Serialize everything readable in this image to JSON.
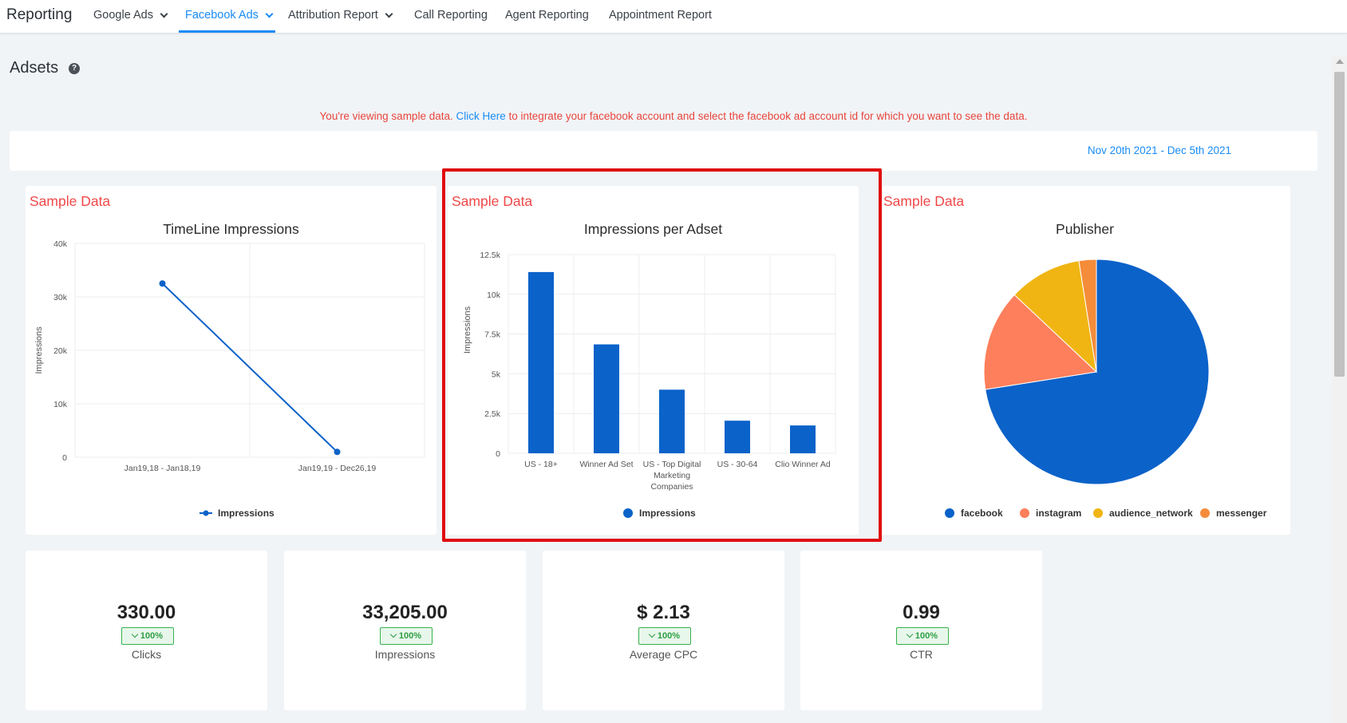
{
  "nav": {
    "brand": "Reporting",
    "items": [
      {
        "label": "Google Ads",
        "dropdown": true
      },
      {
        "label": "Facebook Ads",
        "dropdown": true,
        "active": true
      },
      {
        "label": "Attribution Report",
        "dropdown": true
      },
      {
        "label": "Call Reporting"
      },
      {
        "label": "Agent Reporting"
      },
      {
        "label": "Appointment Report"
      }
    ]
  },
  "page": {
    "title": "Adsets",
    "help_icon": "question-circle-icon"
  },
  "notice": {
    "prefix": "You're viewing sample data.",
    "link": "Click Here",
    "suffix": "to integrate your facebook account and select the facebook ad account id for which you want to see the data."
  },
  "date_range": "Nov 20th 2021 - Dec 5th 2021",
  "sample_label": "Sample Data",
  "colors": {
    "accent": "#188bf6",
    "bar_blue": "#0b62c9",
    "warning_red": "#f04848",
    "highlight_red": "#e00d0d",
    "badge_green": "#37b24d"
  },
  "chart_data": [
    {
      "type": "line",
      "title": "TimeLine Impressions",
      "ylabel": "Impressions",
      "categories": [
        "Jan19,18 - Jan18,19",
        "Jan19,19 - Dec26,19"
      ],
      "y_ticks": [
        "40k",
        "30k",
        "20k",
        "10k",
        "0"
      ],
      "ylim": [
        0,
        40000
      ],
      "series": [
        {
          "name": "Impressions",
          "values": [
            32500,
            1000
          ],
          "color": "#0b62c9"
        }
      ]
    },
    {
      "type": "bar",
      "title": "Impressions per Adset",
      "ylabel": "Impressions",
      "categories": [
        "US - 18+",
        "Winner Ad Set",
        "US - Top Digital Marketing Companies",
        "US - 30-64",
        "Clio Winner Ad"
      ],
      "category_lines": [
        [
          "US - 18+"
        ],
        [
          "Winner Ad Set"
        ],
        [
          "US - Top Digital",
          "Marketing",
          "Companies"
        ],
        [
          "US - 30-64"
        ],
        [
          "Clio Winner Ad"
        ]
      ],
      "y_ticks": [
        "12.5k",
        "10k",
        "7.5k",
        "5k",
        "2.5k",
        "0"
      ],
      "ylim": [
        0,
        12500
      ],
      "series": [
        {
          "name": "Impressions",
          "values": [
            11400,
            6850,
            4000,
            2050,
            1750
          ],
          "color": "#0b62c9"
        }
      ]
    },
    {
      "type": "pie",
      "title": "Publisher",
      "slices": [
        {
          "label": "facebook",
          "value": 72.5,
          "color": "#0b62c9"
        },
        {
          "label": "instagram",
          "value": 14.5,
          "color": "#fd7f5b"
        },
        {
          "label": "audience_network",
          "value": 10.5,
          "color": "#f0b513"
        },
        {
          "label": "messenger",
          "value": 2.5,
          "color": "#f48c3a"
        }
      ]
    }
  ],
  "metrics": [
    {
      "value": "330.00",
      "change": "100%",
      "label": "Clicks"
    },
    {
      "value": "33,205.00",
      "change": "100%",
      "label": "Impressions"
    },
    {
      "value": "$ 2.13",
      "change": "100%",
      "label": "Average CPC"
    },
    {
      "value": "0.99",
      "change": "100%",
      "label": "CTR"
    }
  ]
}
